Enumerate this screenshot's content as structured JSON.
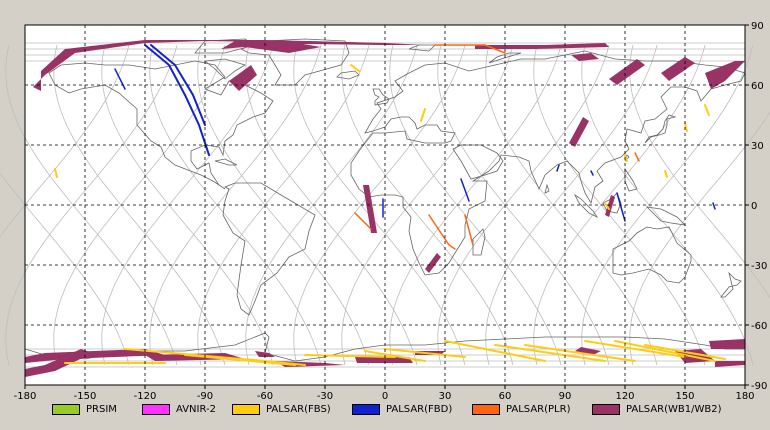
{
  "chart_data": {
    "type": "map",
    "projection": "equirectangular",
    "xlim": [
      -180,
      180
    ],
    "ylim": [
      -90,
      90
    ],
    "x_ticks": [
      "-180",
      "-150",
      "-120",
      "-90",
      "-60",
      "-30",
      "0",
      "30",
      "60",
      "90",
      "120",
      "150",
      "180"
    ],
    "y_ticks_right": [
      "90",
      "60",
      "30",
      "0",
      "-30",
      "-60",
      "-90"
    ],
    "grid": "dashed",
    "legend": [
      {
        "name": "PRSIM",
        "color": "#99cc22"
      },
      {
        "name": "AVNIR-2",
        "color": "#ff33ff"
      },
      {
        "name": "PALSAR(FBS)",
        "color": "#ffcc11"
      },
      {
        "name": "PALSAR(FBD)",
        "color": "#1122cc"
      },
      {
        "name": "PALSAR(PLR)",
        "color": "#ff6611"
      },
      {
        "name": "PALSAR(WB1/WB2)",
        "color": "#993366"
      }
    ]
  }
}
